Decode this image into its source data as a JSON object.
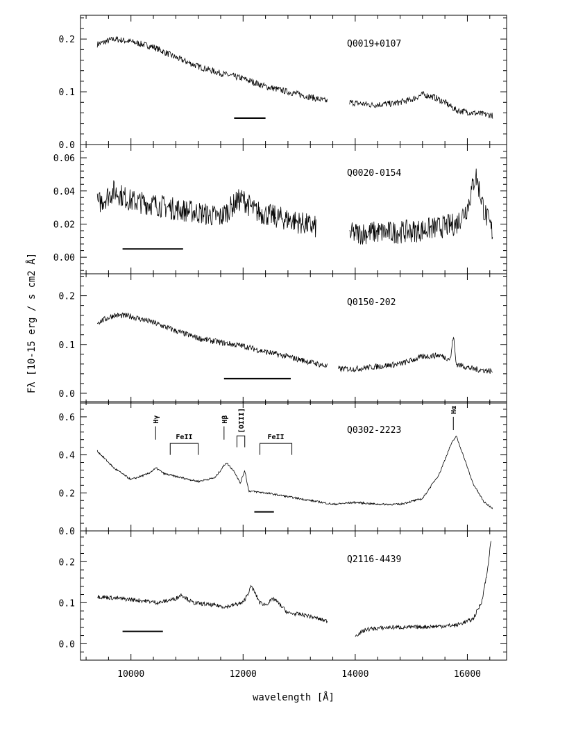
{
  "chart_data": {
    "type": "line",
    "xlabel": "wavelength [Å]",
    "ylabel": "Fλ [10-15 erg / s cm2 Å]",
    "xlim": [
      9100,
      16700
    ],
    "xticks": [
      10000,
      12000,
      14000,
      16000
    ],
    "xtick_labels": [
      "10000",
      "12000",
      "14000",
      "16000"
    ],
    "grid": false,
    "panels": [
      {
        "name": "Q0019+0107",
        "ylim": [
          0.0,
          0.245
        ],
        "yticks": [
          0.0,
          0.1,
          0.2
        ],
        "ytick_labels": [
          "0.0",
          "0.1",
          "0.2"
        ],
        "noise": 0.006,
        "series": [
          {
            "x": [
              9400,
              9700,
              10000,
              10400,
              10800,
              11200,
              11600,
              12000,
              12400,
              12800,
              13200,
              13500
            ],
            "y": [
              0.19,
              0.2,
              0.195,
              0.185,
              0.165,
              0.148,
              0.135,
              0.125,
              0.11,
              0.1,
              0.09,
              0.082
            ]
          },
          {
            "x": [
              13900,
              14300,
              14700,
              15000,
              15200,
              15400,
              15600,
              15800,
              16100,
              16450
            ],
            "y": [
              0.08,
              0.075,
              0.078,
              0.085,
              0.095,
              0.09,
              0.08,
              0.065,
              0.06,
              0.055
            ]
          }
        ],
        "bar": {
          "x1": 11840,
          "x2": 12400,
          "y": 0.05
        },
        "lines": []
      },
      {
        "name": "Q0020-0154",
        "ylim": [
          -0.01,
          0.068
        ],
        "yticks": [
          0.0,
          0.02,
          0.04,
          0.06
        ],
        "ytick_labels": [
          "0.00",
          "0.02",
          "0.04",
          "0.06"
        ],
        "noise": 0.007,
        "series": [
          {
            "x": [
              9400,
              9700,
              10000,
              10400,
              10800,
              11200,
              11600,
              11900,
              12000,
              12200,
              12500,
              12900,
              13300
            ],
            "y": [
              0.032,
              0.04,
              0.034,
              0.032,
              0.029,
              0.027,
              0.024,
              0.034,
              0.035,
              0.028,
              0.025,
              0.022,
              0.018
            ]
          },
          {
            "x": [
              13900,
              14300,
              14700,
              15100,
              15500,
              15800,
              16000,
              16150,
              16300,
              16450
            ],
            "y": [
              0.014,
              0.015,
              0.015,
              0.016,
              0.018,
              0.02,
              0.03,
              0.05,
              0.028,
              0.015
            ]
          }
        ],
        "bar": {
          "x1": 9850,
          "x2": 10930,
          "y": 0.005
        },
        "lines": []
      },
      {
        "name": "Q0150-202",
        "ylim": [
          -0.02,
          0.245
        ],
        "yticks": [
          0.0,
          0.1,
          0.2
        ],
        "ytick_labels": [
          "0.0",
          "0.1",
          "0.2"
        ],
        "noise": 0.006,
        "series": [
          {
            "x": [
              9400,
              9700,
              10000,
              10400,
              10800,
              11200,
              11600,
              12000,
              12400,
              12800,
              13200,
              13500
            ],
            "y": [
              0.145,
              0.16,
              0.158,
              0.145,
              0.128,
              0.113,
              0.104,
              0.097,
              0.085,
              0.075,
              0.064,
              0.055
            ]
          },
          {
            "x": [
              13700,
              14000,
              14400,
              14800,
              15200,
              15500,
              15700,
              15750,
              15800,
              16100,
              16450
            ],
            "y": [
              0.05,
              0.05,
              0.055,
              0.06,
              0.075,
              0.078,
              0.07,
              0.12,
              0.06,
              0.05,
              0.045
            ]
          }
        ],
        "bar": {
          "x1": 11660,
          "x2": 12850,
          "y": 0.03
        },
        "lines": []
      },
      {
        "name": "Q0302-2223",
        "ylim": [
          0.0,
          0.68
        ],
        "yticks": [
          0.0,
          0.2,
          0.4,
          0.6
        ],
        "ytick_labels": [
          "0.0",
          "0.2",
          "0.4",
          "0.6"
        ],
        "noise": 0.005,
        "series": [
          {
            "x": [
              9400,
              9700,
              10000,
              10300,
              10450,
              10600,
              10900,
              11200,
              11500,
              11700,
              11850,
              11950,
              12030,
              12100,
              12400,
              12800,
              13200,
              13600,
              14000,
              14400,
              14800,
              15200,
              15500,
              15700,
              15800,
              15900,
              16100,
              16300,
              16450
            ],
            "y": [
              0.42,
              0.33,
              0.27,
              0.3,
              0.33,
              0.3,
              0.28,
              0.26,
              0.28,
              0.36,
              0.31,
              0.25,
              0.32,
              0.21,
              0.2,
              0.18,
              0.16,
              0.14,
              0.15,
              0.14,
              0.14,
              0.17,
              0.3,
              0.45,
              0.5,
              0.42,
              0.25,
              0.15,
              0.12
            ]
          }
        ],
        "bar": {
          "x1": 12200,
          "x2": 12550,
          "y": 0.1
        },
        "lines": [
          {
            "label": "Hγ",
            "type": "single",
            "x": 10440,
            "y_top": 0.55,
            "y_bot": 0.48
          },
          {
            "label": "FeII",
            "type": "bracket",
            "x1": 10700,
            "x2": 11200,
            "y_top": 0.46,
            "y_bot": 0.4
          },
          {
            "label": "Hβ",
            "type": "single",
            "x": 11660,
            "y_top": 0.55,
            "y_bot": 0.48
          },
          {
            "label": "[OIII]",
            "type": "bracket",
            "x1": 11890,
            "x2": 12030,
            "y_top": 0.5,
            "y_bot": 0.44
          },
          {
            "label": "FeII",
            "type": "bracket",
            "x1": 12300,
            "x2": 12870,
            "y_top": 0.46,
            "y_bot": 0.4
          },
          {
            "label": "Hα",
            "type": "single",
            "x": 15750,
            "y_top": 0.6,
            "y_bot": 0.53
          }
        ]
      },
      {
        "name": "Q2116-4439",
        "ylim": [
          -0.04,
          0.275
        ],
        "yticks": [
          0.0,
          0.1,
          0.2
        ],
        "ytick_labels": [
          "0.0",
          "0.1",
          "0.2"
        ],
        "noise": 0.005,
        "series": [
          {
            "x": [
              9400,
              9800,
              10200,
              10500,
              10800,
              10900,
              11100,
              11400,
              11700,
              12000,
              12150,
              12300,
              12400,
              12550,
              12800,
              13100,
              13500
            ],
            "y": [
              0.115,
              0.11,
              0.105,
              0.1,
              0.11,
              0.12,
              0.1,
              0.095,
              0.09,
              0.1,
              0.14,
              0.1,
              0.095,
              0.11,
              0.075,
              0.07,
              0.055
            ]
          },
          {
            "x": [
              14000,
              14200,
              14600,
              15000,
              15400,
              15800,
              16100,
              16250,
              16350,
              16420
            ],
            "y": [
              0.02,
              0.035,
              0.04,
              0.04,
              0.042,
              0.045,
              0.06,
              0.1,
              0.17,
              0.25
            ]
          }
        ],
        "bar": {
          "x1": 9850,
          "x2": 10570,
          "y": 0.03
        },
        "lines": []
      }
    ]
  }
}
